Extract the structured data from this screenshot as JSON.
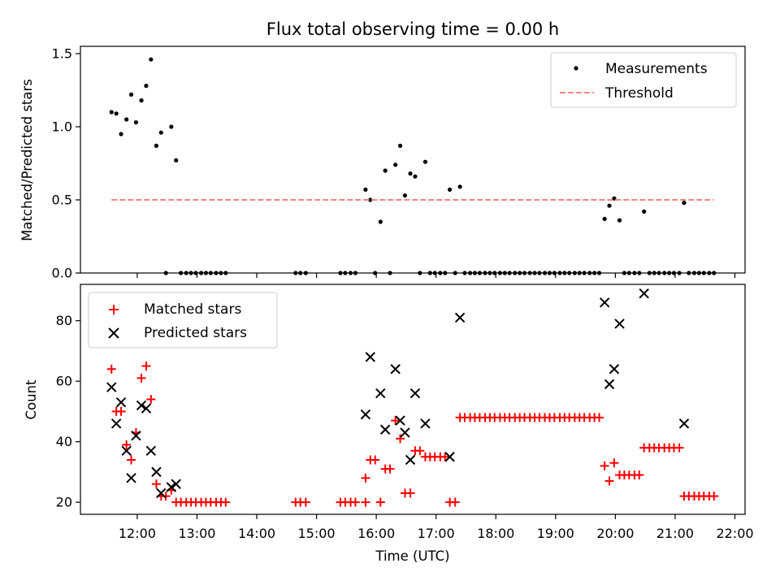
{
  "chart_data": [
    {
      "type": "scatter",
      "title": "Flux total observing time = 0.00 h",
      "ylabel": "Matched/Predicted stars",
      "xlabel": "",
      "x_unit": "hours UTC",
      "xlim": [
        11.05,
        22.17
      ],
      "ylim": [
        0,
        1.55
      ],
      "yticks": [
        0,
        0.5,
        1.0,
        1.5
      ],
      "ytick_labels": [
        "0.0",
        "0.5",
        "1.0",
        "1.5"
      ],
      "grid": false,
      "legend_position": "top-right",
      "series": [
        {
          "name": "Measurements",
          "marker": "dot",
          "color": "#000000",
          "points": [
            [
              11.57,
              1.1
            ],
            [
              11.65,
              1.09
            ],
            [
              11.73,
              0.95
            ],
            [
              11.82,
              1.05
            ],
            [
              11.9,
              1.22
            ],
            [
              11.98,
              1.03
            ],
            [
              12.07,
              1.18
            ],
            [
              12.15,
              1.28
            ],
            [
              12.23,
              1.46
            ],
            [
              12.32,
              0.87
            ],
            [
              12.4,
              0.96
            ],
            [
              12.48,
              0.0
            ],
            [
              12.57,
              1.0
            ],
            [
              12.65,
              0.77
            ],
            [
              12.73,
              0.0
            ],
            [
              12.82,
              0.0
            ],
            [
              12.9,
              0.0
            ],
            [
              12.98,
              0.0
            ],
            [
              13.07,
              0.0
            ],
            [
              13.15,
              0.0
            ],
            [
              13.23,
              0.0
            ],
            [
              13.32,
              0.0
            ],
            [
              13.4,
              0.0
            ],
            [
              13.48,
              0.0
            ],
            [
              14.65,
              0.0
            ],
            [
              14.73,
              0.0
            ],
            [
              14.82,
              0.0
            ],
            [
              15.4,
              0.0
            ],
            [
              15.48,
              0.0
            ],
            [
              15.57,
              0.0
            ],
            [
              15.65,
              0.0
            ],
            [
              15.82,
              0.57
            ],
            [
              15.9,
              0.5
            ],
            [
              15.98,
              0.0
            ],
            [
              16.07,
              0.35
            ],
            [
              16.15,
              0.7
            ],
            [
              16.23,
              0.0
            ],
            [
              16.32,
              0.74
            ],
            [
              16.4,
              0.87
            ],
            [
              16.48,
              0.53
            ],
            [
              16.57,
              0.68
            ],
            [
              16.65,
              0.66
            ],
            [
              16.73,
              0.0
            ],
            [
              16.82,
              0.76
            ],
            [
              16.9,
              0.0
            ],
            [
              16.98,
              0.0
            ],
            [
              17.07,
              0.0
            ],
            [
              17.15,
              0.0
            ],
            [
              17.23,
              0.57
            ],
            [
              17.32,
              0.0
            ],
            [
              17.4,
              0.59
            ],
            [
              17.48,
              0.0
            ],
            [
              17.57,
              0.0
            ],
            [
              17.65,
              0.0
            ],
            [
              17.73,
              0.0
            ],
            [
              17.82,
              0.0
            ],
            [
              17.9,
              0.0
            ],
            [
              17.98,
              0.0
            ],
            [
              18.07,
              0.0
            ],
            [
              18.15,
              0.0
            ],
            [
              18.23,
              0.0
            ],
            [
              18.32,
              0.0
            ],
            [
              18.4,
              0.0
            ],
            [
              18.48,
              0.0
            ],
            [
              18.57,
              0.0
            ],
            [
              18.65,
              0.0
            ],
            [
              18.73,
              0.0
            ],
            [
              18.82,
              0.0
            ],
            [
              18.9,
              0.0
            ],
            [
              18.98,
              0.0
            ],
            [
              19.07,
              0.0
            ],
            [
              19.15,
              0.0
            ],
            [
              19.23,
              0.0
            ],
            [
              19.32,
              0.0
            ],
            [
              19.4,
              0.0
            ],
            [
              19.48,
              0.0
            ],
            [
              19.57,
              0.0
            ],
            [
              19.65,
              0.0
            ],
            [
              19.73,
              0.0
            ],
            [
              19.82,
              0.37
            ],
            [
              19.9,
              0.46
            ],
            [
              19.98,
              0.51
            ],
            [
              20.07,
              0.36
            ],
            [
              20.15,
              0.0
            ],
            [
              20.23,
              0.0
            ],
            [
              20.32,
              0.0
            ],
            [
              20.4,
              0.0
            ],
            [
              20.48,
              0.42
            ],
            [
              20.57,
              0.0
            ],
            [
              20.65,
              0.0
            ],
            [
              20.73,
              0.0
            ],
            [
              20.82,
              0.0
            ],
            [
              20.9,
              0.0
            ],
            [
              20.98,
              0.0
            ],
            [
              21.07,
              0.0
            ],
            [
              21.15,
              0.48
            ],
            [
              21.23,
              0.0
            ],
            [
              21.32,
              0.0
            ],
            [
              21.4,
              0.0
            ],
            [
              21.48,
              0.0
            ],
            [
              21.57,
              0.0
            ],
            [
              21.65,
              0.0
            ]
          ]
        },
        {
          "name": "Threshold",
          "marker": "dashed-line",
          "color": "#ff8080",
          "points": [
            [
              11.57,
              0.5
            ],
            [
              21.65,
              0.5
            ]
          ]
        }
      ]
    },
    {
      "type": "scatter",
      "title": "",
      "ylabel": "Count",
      "xlabel": "Time (UTC)",
      "x_unit": "hours UTC",
      "xlim": [
        11.05,
        22.17
      ],
      "ylim": [
        16,
        92
      ],
      "yticks": [
        20,
        40,
        60,
        80
      ],
      "ytick_labels": [
        "20",
        "40",
        "60",
        "80"
      ],
      "xticks": [
        12,
        13,
        14,
        15,
        16,
        17,
        18,
        19,
        20,
        21,
        22
      ],
      "xtick_labels": [
        "12:00",
        "13:00",
        "14:00",
        "15:00",
        "16:00",
        "17:00",
        "18:00",
        "19:00",
        "20:00",
        "21:00",
        "22:00"
      ],
      "grid": false,
      "legend_position": "top-left",
      "series": [
        {
          "name": "Matched stars",
          "marker": "plus",
          "color": "#ff0000",
          "points": [
            [
              11.57,
              64
            ],
            [
              11.65,
              50
            ],
            [
              11.73,
              50
            ],
            [
              11.82,
              39
            ],
            [
              11.9,
              34
            ],
            [
              11.98,
              43
            ],
            [
              12.07,
              61
            ],
            [
              12.15,
              65
            ],
            [
              12.23,
              54
            ],
            [
              12.32,
              26
            ],
            [
              12.4,
              22
            ],
            [
              12.48,
              22
            ],
            [
              12.57,
              24
            ],
            [
              12.65,
              20
            ],
            [
              12.73,
              20
            ],
            [
              12.82,
              20
            ],
            [
              12.9,
              20
            ],
            [
              12.98,
              20
            ],
            [
              13.07,
              20
            ],
            [
              13.15,
              20
            ],
            [
              13.23,
              20
            ],
            [
              13.32,
              20
            ],
            [
              13.4,
              20
            ],
            [
              13.48,
              20
            ],
            [
              14.65,
              20
            ],
            [
              14.73,
              20
            ],
            [
              14.82,
              20
            ],
            [
              15.4,
              20
            ],
            [
              15.48,
              20
            ],
            [
              15.57,
              20
            ],
            [
              15.65,
              20
            ],
            [
              15.82,
              20
            ],
            [
              15.82,
              28
            ],
            [
              15.9,
              34
            ],
            [
              15.98,
              34
            ],
            [
              16.07,
              20
            ],
            [
              16.15,
              31
            ],
            [
              16.23,
              31
            ],
            [
              16.32,
              47
            ],
            [
              16.4,
              41
            ],
            [
              16.48,
              23
            ],
            [
              16.57,
              23
            ],
            [
              16.65,
              37
            ],
            [
              16.73,
              37
            ],
            [
              16.82,
              35
            ],
            [
              16.9,
              35
            ],
            [
              16.98,
              35
            ],
            [
              17.07,
              35
            ],
            [
              17.15,
              35
            ],
            [
              17.23,
              20
            ],
            [
              17.32,
              20
            ],
            [
              17.4,
              48
            ],
            [
              17.48,
              48
            ],
            [
              17.57,
              48
            ],
            [
              17.65,
              48
            ],
            [
              17.73,
              48
            ],
            [
              17.82,
              48
            ],
            [
              17.9,
              48
            ],
            [
              17.98,
              48
            ],
            [
              18.07,
              48
            ],
            [
              18.15,
              48
            ],
            [
              18.23,
              48
            ],
            [
              18.32,
              48
            ],
            [
              18.4,
              48
            ],
            [
              18.48,
              48
            ],
            [
              18.57,
              48
            ],
            [
              18.65,
              48
            ],
            [
              18.73,
              48
            ],
            [
              18.82,
              48
            ],
            [
              18.9,
              48
            ],
            [
              18.98,
              48
            ],
            [
              19.07,
              48
            ],
            [
              19.15,
              48
            ],
            [
              19.23,
              48
            ],
            [
              19.32,
              48
            ],
            [
              19.4,
              48
            ],
            [
              19.48,
              48
            ],
            [
              19.57,
              48
            ],
            [
              19.65,
              48
            ],
            [
              19.73,
              48
            ],
            [
              19.82,
              32
            ],
            [
              19.9,
              27
            ],
            [
              19.98,
              33
            ],
            [
              20.07,
              29
            ],
            [
              20.15,
              29
            ],
            [
              20.23,
              29
            ],
            [
              20.32,
              29
            ],
            [
              20.4,
              29
            ],
            [
              20.48,
              38
            ],
            [
              20.57,
              38
            ],
            [
              20.65,
              38
            ],
            [
              20.73,
              38
            ],
            [
              20.82,
              38
            ],
            [
              20.9,
              38
            ],
            [
              20.98,
              38
            ],
            [
              21.07,
              38
            ],
            [
              21.15,
              22
            ],
            [
              21.23,
              22
            ],
            [
              21.32,
              22
            ],
            [
              21.4,
              22
            ],
            [
              21.48,
              22
            ],
            [
              21.57,
              22
            ],
            [
              21.65,
              22
            ]
          ]
        },
        {
          "name": "Predicted stars",
          "marker": "x",
          "color": "#000000",
          "points": [
            [
              11.57,
              58
            ],
            [
              11.65,
              46
            ],
            [
              11.73,
              53
            ],
            [
              11.82,
              37
            ],
            [
              11.9,
              28
            ],
            [
              11.98,
              42
            ],
            [
              12.07,
              52
            ],
            [
              12.15,
              51
            ],
            [
              12.23,
              37
            ],
            [
              12.32,
              30
            ],
            [
              12.4,
              23
            ],
            [
              12.57,
              25
            ],
            [
              12.65,
              26
            ],
            [
              15.82,
              49
            ],
            [
              15.9,
              68
            ],
            [
              16.07,
              56
            ],
            [
              16.15,
              44
            ],
            [
              16.32,
              64
            ],
            [
              16.4,
              47
            ],
            [
              16.48,
              43
            ],
            [
              16.57,
              34
            ],
            [
              16.65,
              56
            ],
            [
              16.82,
              46
            ],
            [
              17.23,
              35
            ],
            [
              17.4,
              81
            ],
            [
              19.82,
              86
            ],
            [
              19.9,
              59
            ],
            [
              19.98,
              64
            ],
            [
              20.07,
              79
            ],
            [
              20.48,
              89
            ],
            [
              21.15,
              46
            ]
          ]
        }
      ]
    }
  ]
}
